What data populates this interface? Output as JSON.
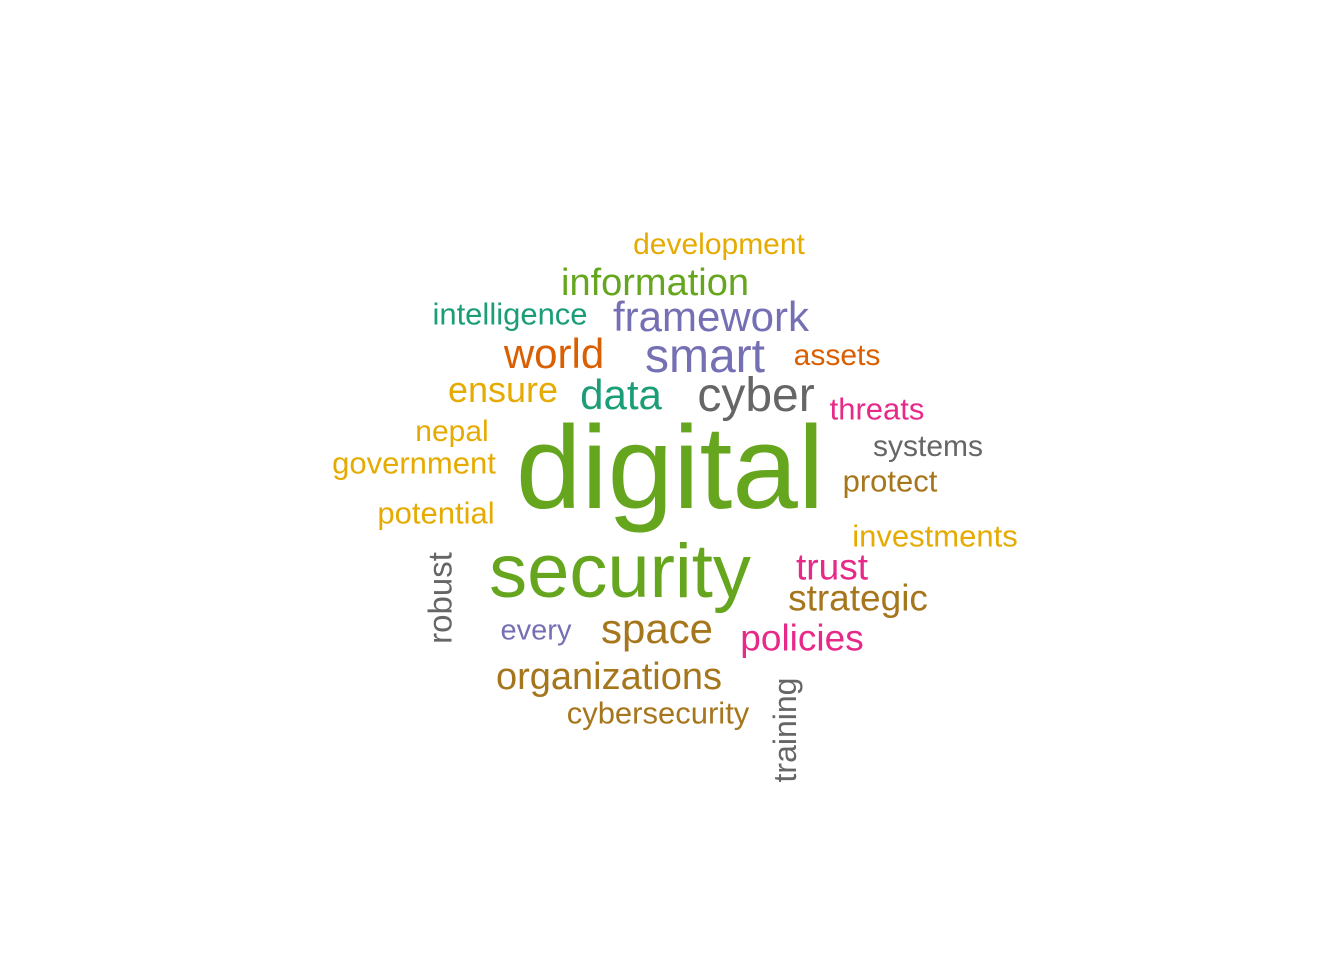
{
  "palette": {
    "green": "#66a61e",
    "purple": "#7570b3",
    "orange": "#d95f02",
    "teal": "#1b9e77",
    "gold": "#e6ab02",
    "brown": "#a6761d",
    "magenta": "#e7298a",
    "gray": "#666666"
  },
  "words": [
    {
      "id": "development",
      "text": "development",
      "color": "#e6ab02",
      "vertical": false
    },
    {
      "id": "information",
      "text": "information",
      "color": "#66a61e",
      "vertical": false
    },
    {
      "id": "intelligence",
      "text": "intelligence",
      "color": "#1b9e77",
      "vertical": false
    },
    {
      "id": "framework",
      "text": "framework",
      "color": "#7570b3",
      "vertical": false
    },
    {
      "id": "world",
      "text": "world",
      "color": "#d95f02",
      "vertical": false
    },
    {
      "id": "smart",
      "text": "smart",
      "color": "#7570b3",
      "vertical": false
    },
    {
      "id": "assets",
      "text": "assets",
      "color": "#d95f02",
      "vertical": false
    },
    {
      "id": "ensure",
      "text": "ensure",
      "color": "#e6ab02",
      "vertical": false
    },
    {
      "id": "data",
      "text": "data",
      "color": "#1b9e77",
      "vertical": false
    },
    {
      "id": "cyber",
      "text": "cyber",
      "color": "#666666",
      "vertical": false
    },
    {
      "id": "threats",
      "text": "threats",
      "color": "#e7298a",
      "vertical": false
    },
    {
      "id": "nepal",
      "text": "nepal",
      "color": "#e6ab02",
      "vertical": false
    },
    {
      "id": "government",
      "text": "government",
      "color": "#e6ab02",
      "vertical": false
    },
    {
      "id": "digital",
      "text": "digital",
      "color": "#66a61e",
      "vertical": false
    },
    {
      "id": "systems",
      "text": "systems",
      "color": "#666666",
      "vertical": false
    },
    {
      "id": "protect",
      "text": "protect",
      "color": "#a6761d",
      "vertical": false
    },
    {
      "id": "potential",
      "text": "potential",
      "color": "#e6ab02",
      "vertical": false
    },
    {
      "id": "investments",
      "text": "investments",
      "color": "#e6ab02",
      "vertical": false
    },
    {
      "id": "security",
      "text": "security",
      "color": "#66a61e",
      "vertical": false
    },
    {
      "id": "trust",
      "text": "trust",
      "color": "#e7298a",
      "vertical": false
    },
    {
      "id": "robust",
      "text": "robust",
      "color": "#666666",
      "vertical": true
    },
    {
      "id": "strategic",
      "text": "strategic",
      "color": "#a6761d",
      "vertical": false
    },
    {
      "id": "every",
      "text": "every",
      "color": "#7570b3",
      "vertical": false
    },
    {
      "id": "space",
      "text": "space",
      "color": "#a6761d",
      "vertical": false
    },
    {
      "id": "policies",
      "text": "policies",
      "color": "#e7298a",
      "vertical": false
    },
    {
      "id": "organizations",
      "text": "organizations",
      "color": "#a6761d",
      "vertical": false
    },
    {
      "id": "cybersecurity",
      "text": "cybersecurity",
      "color": "#a6761d",
      "vertical": false
    },
    {
      "id": "training",
      "text": "training",
      "color": "#666666",
      "vertical": true
    }
  ]
}
